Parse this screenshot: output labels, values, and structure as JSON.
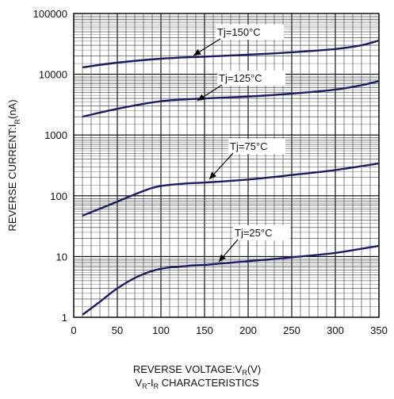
{
  "chart_data": {
    "type": "line",
    "xlabel": "REVERSE VOLTAGE:V_R(V)",
    "ylabel": "REVERSE CURRENT:I_R(nA)",
    "subtitle": "V_R-I_R CHARACTERISTICS",
    "xlim": [
      0,
      350
    ],
    "ylim": [
      1,
      100000
    ],
    "yscale": "log",
    "grid": true,
    "x_ticks": [
      "0",
      "50",
      "100",
      "150",
      "200",
      "250",
      "300",
      "350"
    ],
    "y_ticks": [
      "1",
      "10",
      "100",
      "1000",
      "10000",
      "100000"
    ],
    "series": [
      {
        "name": "Tj=150°C",
        "color": "#1a1a6e",
        "x": [
          10,
          50,
          100,
          150,
          200,
          250,
          300,
          330,
          350
        ],
        "y": [
          13000,
          15500,
          18000,
          19500,
          21000,
          23000,
          26000,
          30000,
          36000
        ]
      },
      {
        "name": "Tj=125°C",
        "color": "#1a1a6e",
        "x": [
          10,
          50,
          100,
          150,
          200,
          250,
          300,
          330,
          350
        ],
        "y": [
          2000,
          2700,
          3600,
          4000,
          4300,
          4800,
          5600,
          6600,
          7700
        ]
      },
      {
        "name": "Tj=75°C",
        "color": "#1a1a6e",
        "x": [
          10,
          50,
          80,
          100,
          130,
          150,
          200,
          250,
          300,
          350
        ],
        "y": [
          47,
          80,
          120,
          145,
          160,
          165,
          185,
          220,
          265,
          340
        ]
      },
      {
        "name": "Tj=25°C",
        "color": "#1a1a6e",
        "x": [
          10,
          30,
          50,
          75,
          100,
          130,
          150,
          200,
          250,
          300,
          350
        ],
        "y": [
          1.1,
          1.8,
          3.0,
          4.8,
          6.3,
          7.0,
          7.3,
          8.4,
          9.7,
          11.5,
          15
        ]
      }
    ],
    "annotations": [
      {
        "text": "Tj=150°C",
        "series": 0
      },
      {
        "text": "Tj=125°C",
        "series": 1
      },
      {
        "text": "Tj=75°C",
        "series": 2
      },
      {
        "text": "Tj=25°C",
        "series": 3
      }
    ]
  }
}
